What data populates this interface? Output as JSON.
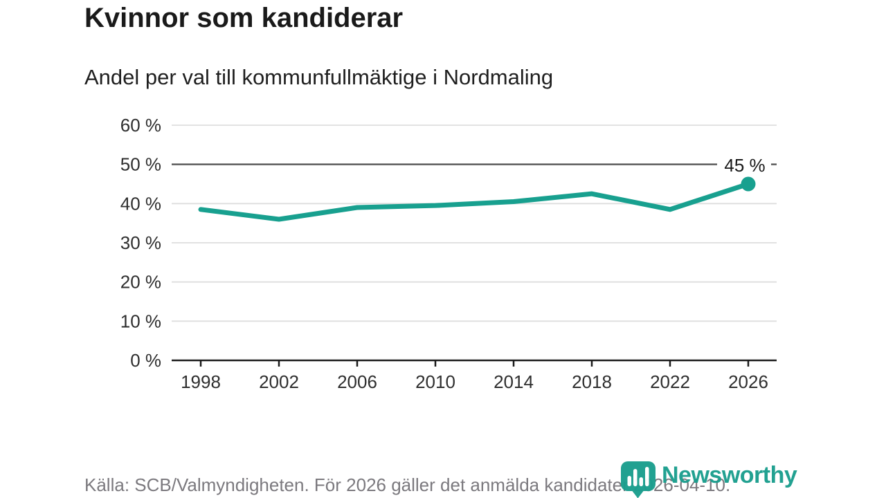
{
  "header": {
    "title": "Kvinnor som kandiderar",
    "subtitle": "Andel per val till kommunfullmäktige i Nordmaling"
  },
  "chart_data": {
    "type": "line",
    "title": "Kvinnor som kandiderar",
    "subtitle": "Andel per val till kommunfullmäktige i Nordmaling",
    "categories": [
      "1998",
      "2002",
      "2006",
      "2010",
      "2014",
      "2018",
      "2022",
      "2026"
    ],
    "values": [
      38.5,
      36,
      39,
      39.5,
      40.5,
      42.5,
      38.5,
      45
    ],
    "xlabel": "",
    "ylabel": "",
    "ylim": [
      0,
      60
    ],
    "ytick_step": 10,
    "ytick_suffix": " %",
    "reference_line": 50,
    "end_label": "45 %",
    "grid": true,
    "legend_position": "none",
    "line_color": "#18a08f",
    "grid_color": "#dedede",
    "reference_line_color": "#5c5c5c",
    "axis_color": "#1a1a1a",
    "tick_label_color": "#2e2e2e"
  },
  "footer": {
    "source": "Källa: SCB/Valmyndigheten. För 2026 gäller det anmälda kandidater 2026-04-10."
  },
  "logo": {
    "text": "Newsworthy",
    "color": "#1b9e8e"
  }
}
